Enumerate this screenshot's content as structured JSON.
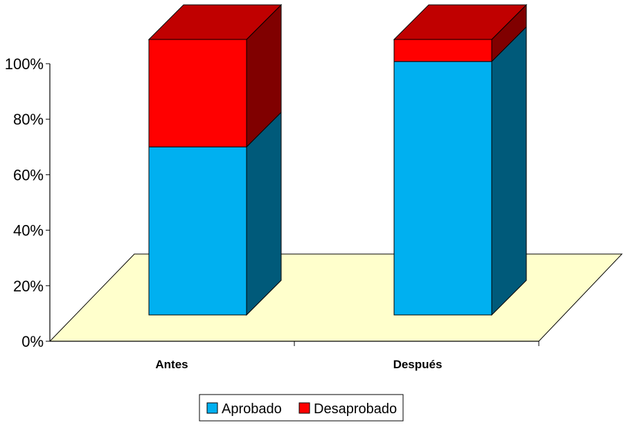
{
  "chart_data": {
    "type": "bar",
    "stacked": true,
    "percent_stacked": true,
    "three_d": true,
    "categories": [
      "Antes",
      "Después"
    ],
    "series": [
      {
        "name": "Aprobado",
        "values": [
          61,
          92
        ],
        "color": "#00b0f0",
        "side_color": "#005a7a"
      },
      {
        "name": "Desaprobado",
        "values": [
          39,
          8
        ],
        "color": "#ff0000",
        "side_color": "#800000",
        "top_color": "#c00000"
      }
    ],
    "y_ticks": [
      "0%",
      "20%",
      "40%",
      "60%",
      "80%",
      "100%"
    ],
    "ylim": [
      0,
      100
    ],
    "grid": false,
    "legend_position": "bottom",
    "floor_color": "#ffffcc"
  }
}
